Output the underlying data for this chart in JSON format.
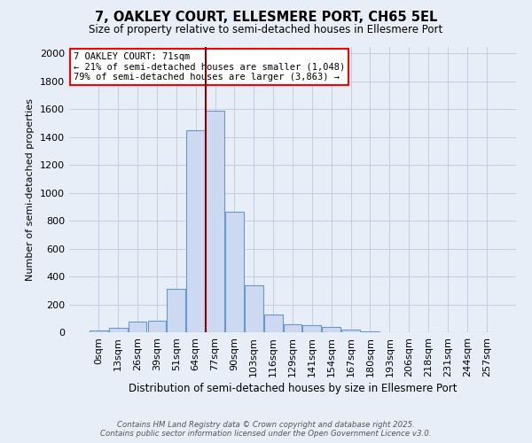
{
  "title": "7, OAKLEY COURT, ELLESMERE PORT, CH65 5EL",
  "subtitle": "Size of property relative to semi-detached houses in Ellesmere Port",
  "xlabel": "Distribution of semi-detached houses by size in Ellesmere Port",
  "ylabel": "Number of semi-detached properties",
  "footnote1": "Contains HM Land Registry data © Crown copyright and database right 2025.",
  "footnote2": "Contains public sector information licensed under the Open Government Licence v3.0.",
  "bar_labels": [
    "0sqm",
    "13sqm",
    "26sqm",
    "39sqm",
    "51sqm",
    "64sqm",
    "77sqm",
    "90sqm",
    "103sqm",
    "116sqm",
    "129sqm",
    "141sqm",
    "154sqm",
    "167sqm",
    "180sqm",
    "193sqm",
    "206sqm",
    "218sqm",
    "231sqm",
    "244sqm",
    "257sqm"
  ],
  "bar_values": [
    10,
    30,
    75,
    85,
    310,
    1450,
    1590,
    865,
    335,
    125,
    60,
    50,
    35,
    20,
    5,
    0,
    0,
    0,
    0,
    0,
    0
  ],
  "bar_color": "#ccd9f0",
  "bar_edge_color": "#6699cc",
  "grid_color": "#c0cfe0",
  "background_color": "#e8eef8",
  "vline_x": 5.5,
  "vline_color": "#8b0000",
  "annotation_text": "7 OAKLEY COURT: 71sqm\n← 21% of semi-detached houses are smaller (1,048)\n79% of semi-detached houses are larger (3,863) →",
  "box_color": "white",
  "box_edge_color": "red",
  "ylim": [
    0,
    2050
  ],
  "yticks": [
    0,
    200,
    400,
    600,
    800,
    1000,
    1200,
    1400,
    1600,
    1800,
    2000
  ]
}
